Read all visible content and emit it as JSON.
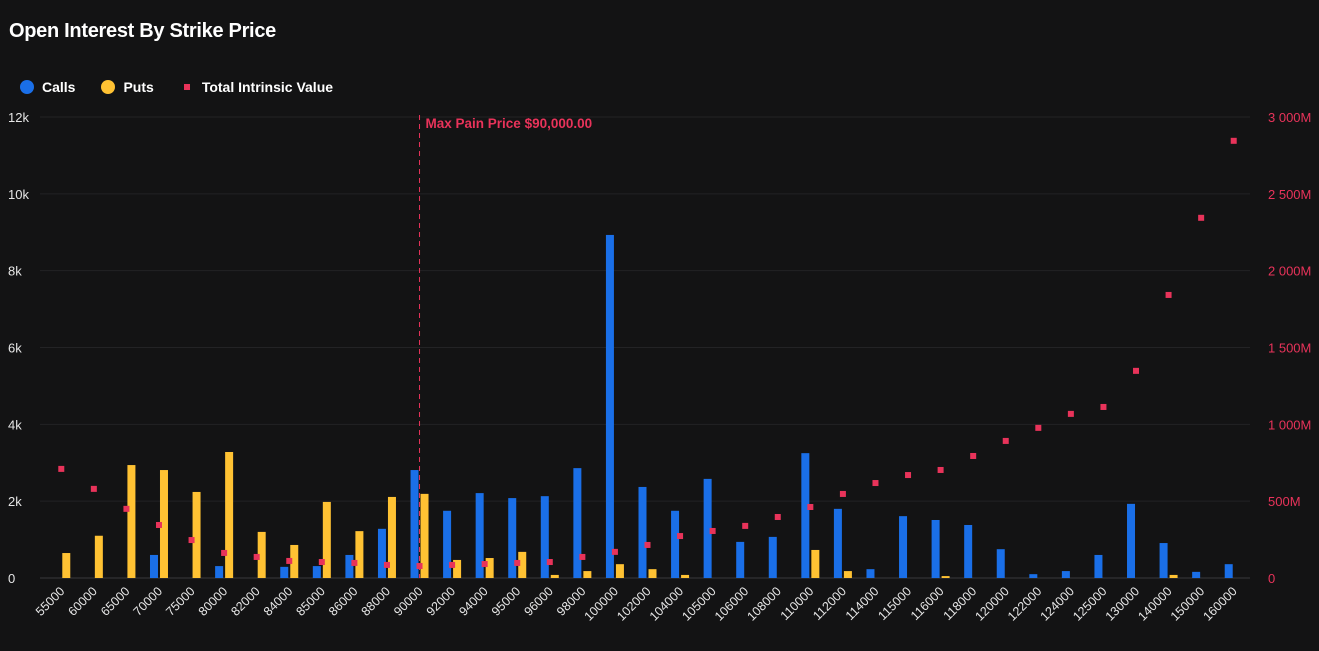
{
  "title": "Open Interest By Strike Price",
  "legend": [
    {
      "label": "Calls",
      "color": "#1a6fe8"
    },
    {
      "label": "Puts",
      "color": "#ffc233"
    },
    {
      "label": "Total Intrinsic Value",
      "color": "#e8335a"
    }
  ],
  "chart_data": {
    "type": "bar",
    "title": "Open Interest By Strike Price",
    "categories": [
      "55000",
      "60000",
      "65000",
      "70000",
      "75000",
      "80000",
      "82000",
      "84000",
      "85000",
      "86000",
      "88000",
      "90000",
      "92000",
      "94000",
      "95000",
      "96000",
      "98000",
      "100000",
      "102000",
      "104000",
      "105000",
      "106000",
      "108000",
      "110000",
      "112000",
      "114000",
      "115000",
      "116000",
      "118000",
      "120000",
      "122000",
      "124000",
      "125000",
      "130000",
      "140000",
      "150000",
      "160000"
    ],
    "series": [
      {
        "name": "Calls",
        "axis": "left",
        "type": "bar",
        "color": "#1a6fe8",
        "values": [
          0,
          0,
          0,
          600,
          0,
          310,
          0,
          290,
          310,
          600,
          1280,
          2810,
          1750,
          2210,
          2080,
          2130,
          2860,
          8930,
          2370,
          1750,
          2580,
          940,
          1070,
          3250,
          1800,
          230,
          1610,
          1510,
          1380,
          750,
          100,
          180,
          600,
          1930,
          910,
          160,
          360
        ]
      },
      {
        "name": "Puts",
        "axis": "left",
        "type": "bar",
        "color": "#ffc233",
        "values": [
          650,
          1100,
          2940,
          2810,
          2240,
          3280,
          1200,
          860,
          1980,
          1220,
          2110,
          2190,
          470,
          520,
          680,
          80,
          180,
          360,
          230,
          80,
          0,
          0,
          0,
          730,
          180,
          0,
          0,
          50,
          0,
          0,
          0,
          0,
          0,
          0,
          80,
          0,
          0
        ]
      },
      {
        "name": "Total Intrinsic Value",
        "axis": "right",
        "type": "scatter",
        "unit": "M",
        "color": "#e8335a",
        "values": [
          710,
          580,
          450,
          345,
          247,
          163,
          137,
          111,
          104,
          98,
          85,
          78,
          85,
          91,
          98,
          104,
          137,
          170,
          215,
          273,
          306,
          339,
          397,
          462,
          547,
          618,
          670,
          703,
          794,
          892,
          977,
          1068,
          1113,
          1348,
          1842,
          2344,
          2845
        ]
      }
    ],
    "y_left": {
      "ylim": [
        0,
        12000
      ],
      "ticks": [
        0,
        2000,
        4000,
        6000,
        8000,
        10000,
        12000
      ],
      "tick_labels": [
        "0",
        "2k",
        "4k",
        "6k",
        "8k",
        "10k",
        "12k"
      ]
    },
    "y_right": {
      "ylim": [
        0,
        3000
      ],
      "ticks": [
        0,
        500,
        1000,
        1500,
        2000,
        2500,
        3000
      ],
      "tick_labels": [
        "0",
        "500M",
        "1 000M",
        "1 500M",
        "2 000M",
        "2 500M",
        "3 000M"
      ]
    },
    "annotation": {
      "category": "90000",
      "label": "Max Pain Price $90,000.00",
      "color": "#e8335a"
    },
    "grid": true,
    "legend_position": "top-left"
  }
}
